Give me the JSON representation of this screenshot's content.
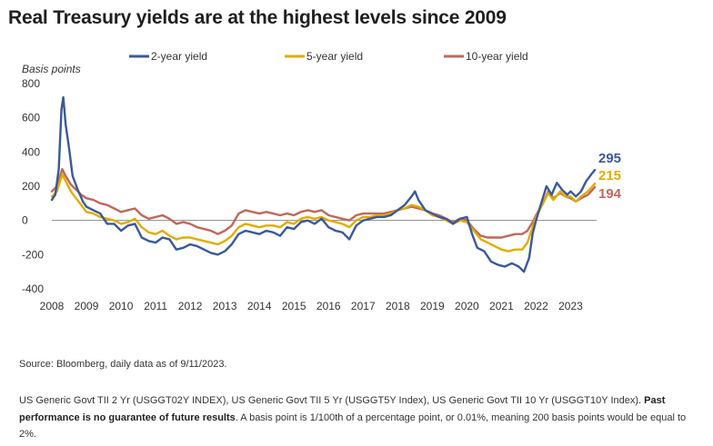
{
  "title": "Real Treasury yields are at the highest levels since 2009",
  "source_note": "Source: Bloomberg, daily data as of 9/11/2023.",
  "footnote": {
    "text1": "US Generic Govt TII 2 Yr (USGGT02Y INDEX), US Generic Govt TII 5 Yr (USGGT5Y Index), US Generic Govt TII 10 Yr (USGGT10Y Index). ",
    "bold": "Past performance is no guarantee of future results",
    "text2": ". A basis point is 1/100th of a percentage point, or 0.01%, meaning 200 basis points would be equal to 2%."
  },
  "chart_data": {
    "type": "line",
    "title": "Real Treasury yields are at the highest levels since 2009",
    "ylabel": "Basis points",
    "xlabel": "",
    "xlim": [
      2008,
      2023.75
    ],
    "ylim": [
      -400,
      800
    ],
    "yticks": [
      -400,
      -200,
      0,
      200,
      400,
      600,
      800
    ],
    "xticks": [
      2008,
      2009,
      2010,
      2011,
      2012,
      2013,
      2014,
      2015,
      2016,
      2017,
      2018,
      2019,
      2020,
      2021,
      2022,
      2023
    ],
    "legend_position": "top",
    "zero_line": true,
    "series": [
      {
        "name": "2-year yield",
        "color": "#3b5998",
        "end_label": "295",
        "points": [
          [
            2008.0,
            120
          ],
          [
            2008.1,
            150
          ],
          [
            2008.2,
            300
          ],
          [
            2008.28,
            650
          ],
          [
            2008.33,
            720
          ],
          [
            2008.4,
            560
          ],
          [
            2008.5,
            420
          ],
          [
            2008.6,
            260
          ],
          [
            2008.75,
            180
          ],
          [
            2008.9,
            110
          ],
          [
            2009.0,
            80
          ],
          [
            2009.2,
            60
          ],
          [
            2009.4,
            40
          ],
          [
            2009.6,
            -20
          ],
          [
            2009.8,
            -20
          ],
          [
            2010.0,
            -60
          ],
          [
            2010.2,
            -30
          ],
          [
            2010.4,
            -20
          ],
          [
            2010.6,
            -100
          ],
          [
            2010.8,
            -120
          ],
          [
            2011.0,
            -130
          ],
          [
            2011.2,
            -100
          ],
          [
            2011.4,
            -110
          ],
          [
            2011.6,
            -170
          ],
          [
            2011.8,
            -160
          ],
          [
            2012.0,
            -140
          ],
          [
            2012.2,
            -150
          ],
          [
            2012.4,
            -170
          ],
          [
            2012.6,
            -190
          ],
          [
            2012.8,
            -200
          ],
          [
            2013.0,
            -180
          ],
          [
            2013.2,
            -140
          ],
          [
            2013.4,
            -80
          ],
          [
            2013.6,
            -60
          ],
          [
            2013.8,
            -70
          ],
          [
            2014.0,
            -80
          ],
          [
            2014.2,
            -60
          ],
          [
            2014.4,
            -70
          ],
          [
            2014.6,
            -90
          ],
          [
            2014.8,
            -40
          ],
          [
            2015.0,
            -50
          ],
          [
            2015.2,
            -10
          ],
          [
            2015.4,
            0
          ],
          [
            2015.6,
            -20
          ],
          [
            2015.8,
            10
          ],
          [
            2016.0,
            -40
          ],
          [
            2016.2,
            -60
          ],
          [
            2016.4,
            -70
          ],
          [
            2016.6,
            -110
          ],
          [
            2016.8,
            -30
          ],
          [
            2017.0,
            0
          ],
          [
            2017.2,
            10
          ],
          [
            2017.4,
            20
          ],
          [
            2017.6,
            20
          ],
          [
            2017.8,
            30
          ],
          [
            2018.0,
            60
          ],
          [
            2018.2,
            90
          ],
          [
            2018.4,
            140
          ],
          [
            2018.5,
            170
          ],
          [
            2018.6,
            120
          ],
          [
            2018.8,
            60
          ],
          [
            2019.0,
            40
          ],
          [
            2019.2,
            20
          ],
          [
            2019.4,
            10
          ],
          [
            2019.6,
            -20
          ],
          [
            2019.8,
            10
          ],
          [
            2020.0,
            20
          ],
          [
            2020.15,
            -80
          ],
          [
            2020.3,
            -160
          ],
          [
            2020.5,
            -180
          ],
          [
            2020.7,
            -240
          ],
          [
            2020.9,
            -260
          ],
          [
            2021.1,
            -270
          ],
          [
            2021.3,
            -250
          ],
          [
            2021.5,
            -270
          ],
          [
            2021.65,
            -300
          ],
          [
            2021.8,
            -220
          ],
          [
            2021.9,
            -80
          ],
          [
            2022.0,
            0
          ],
          [
            2022.15,
            100
          ],
          [
            2022.3,
            200
          ],
          [
            2022.45,
            150
          ],
          [
            2022.6,
            220
          ],
          [
            2022.75,
            180
          ],
          [
            2022.9,
            150
          ],
          [
            2023.0,
            170
          ],
          [
            2023.15,
            140
          ],
          [
            2023.3,
            170
          ],
          [
            2023.45,
            230
          ],
          [
            2023.6,
            270
          ],
          [
            2023.7,
            295
          ]
        ]
      },
      {
        "name": "5-year yield",
        "color": "#e0ac00",
        "end_label": "215",
        "points": [
          [
            2008.0,
            140
          ],
          [
            2008.15,
            170
          ],
          [
            2008.3,
            270
          ],
          [
            2008.4,
            230
          ],
          [
            2008.55,
            170
          ],
          [
            2008.7,
            130
          ],
          [
            2008.85,
            90
          ],
          [
            2009.0,
            50
          ],
          [
            2009.2,
            40
          ],
          [
            2009.4,
            20
          ],
          [
            2009.6,
            10
          ],
          [
            2009.8,
            0
          ],
          [
            2010.0,
            -20
          ],
          [
            2010.2,
            -10
          ],
          [
            2010.4,
            10
          ],
          [
            2010.6,
            -40
          ],
          [
            2010.8,
            -70
          ],
          [
            2011.0,
            -80
          ],
          [
            2011.2,
            -60
          ],
          [
            2011.4,
            -90
          ],
          [
            2011.6,
            -110
          ],
          [
            2011.8,
            -100
          ],
          [
            2012.0,
            -100
          ],
          [
            2012.2,
            -110
          ],
          [
            2012.4,
            -120
          ],
          [
            2012.6,
            -130
          ],
          [
            2012.8,
            -140
          ],
          [
            2013.0,
            -120
          ],
          [
            2013.2,
            -90
          ],
          [
            2013.4,
            -40
          ],
          [
            2013.6,
            -20
          ],
          [
            2013.8,
            -30
          ],
          [
            2014.0,
            -40
          ],
          [
            2014.2,
            -30
          ],
          [
            2014.4,
            -30
          ],
          [
            2014.6,
            -40
          ],
          [
            2014.8,
            -10
          ],
          [
            2015.0,
            -20
          ],
          [
            2015.2,
            10
          ],
          [
            2015.4,
            20
          ],
          [
            2015.6,
            10
          ],
          [
            2015.8,
            20
          ],
          [
            2016.0,
            0
          ],
          [
            2016.2,
            -10
          ],
          [
            2016.4,
            -20
          ],
          [
            2016.6,
            -40
          ],
          [
            2016.8,
            0
          ],
          [
            2017.0,
            20
          ],
          [
            2017.2,
            20
          ],
          [
            2017.4,
            30
          ],
          [
            2017.6,
            30
          ],
          [
            2017.8,
            40
          ],
          [
            2018.0,
            60
          ],
          [
            2018.2,
            70
          ],
          [
            2018.4,
            90
          ],
          [
            2018.6,
            80
          ],
          [
            2018.8,
            60
          ],
          [
            2019.0,
            30
          ],
          [
            2019.2,
            20
          ],
          [
            2019.4,
            0
          ],
          [
            2019.6,
            -20
          ],
          [
            2019.8,
            0
          ],
          [
            2020.0,
            -10
          ],
          [
            2020.2,
            -60
          ],
          [
            2020.4,
            -110
          ],
          [
            2020.6,
            -130
          ],
          [
            2020.8,
            -150
          ],
          [
            2021.0,
            -170
          ],
          [
            2021.2,
            -180
          ],
          [
            2021.4,
            -170
          ],
          [
            2021.6,
            -170
          ],
          [
            2021.75,
            -130
          ],
          [
            2021.9,
            -40
          ],
          [
            2022.0,
            20
          ],
          [
            2022.2,
            100
          ],
          [
            2022.35,
            160
          ],
          [
            2022.5,
            120
          ],
          [
            2022.7,
            170
          ],
          [
            2022.85,
            140
          ],
          [
            2023.0,
            140
          ],
          [
            2023.15,
            110
          ],
          [
            2023.3,
            140
          ],
          [
            2023.5,
            170
          ],
          [
            2023.7,
            215
          ]
        ]
      },
      {
        "name": "10-year yield",
        "color": "#c0675c",
        "end_label": "194",
        "points": [
          [
            2008.0,
            170
          ],
          [
            2008.15,
            200
          ],
          [
            2008.3,
            300
          ],
          [
            2008.4,
            260
          ],
          [
            2008.55,
            210
          ],
          [
            2008.7,
            180
          ],
          [
            2008.85,
            150
          ],
          [
            2009.0,
            130
          ],
          [
            2009.2,
            120
          ],
          [
            2009.4,
            100
          ],
          [
            2009.6,
            90
          ],
          [
            2009.8,
            70
          ],
          [
            2010.0,
            50
          ],
          [
            2010.2,
            60
          ],
          [
            2010.4,
            70
          ],
          [
            2010.6,
            30
          ],
          [
            2010.8,
            10
          ],
          [
            2011.0,
            20
          ],
          [
            2011.2,
            30
          ],
          [
            2011.4,
            10
          ],
          [
            2011.6,
            -20
          ],
          [
            2011.8,
            -10
          ],
          [
            2012.0,
            -20
          ],
          [
            2012.2,
            -40
          ],
          [
            2012.4,
            -50
          ],
          [
            2012.6,
            -60
          ],
          [
            2012.8,
            -80
          ],
          [
            2013.0,
            -60
          ],
          [
            2013.2,
            -30
          ],
          [
            2013.4,
            40
          ],
          [
            2013.6,
            60
          ],
          [
            2013.8,
            50
          ],
          [
            2014.0,
            40
          ],
          [
            2014.2,
            50
          ],
          [
            2014.4,
            40
          ],
          [
            2014.6,
            30
          ],
          [
            2014.8,
            40
          ],
          [
            2015.0,
            30
          ],
          [
            2015.2,
            50
          ],
          [
            2015.4,
            60
          ],
          [
            2015.6,
            50
          ],
          [
            2015.8,
            60
          ],
          [
            2016.0,
            30
          ],
          [
            2016.2,
            20
          ],
          [
            2016.4,
            10
          ],
          [
            2016.6,
            0
          ],
          [
            2016.8,
            30
          ],
          [
            2017.0,
            40
          ],
          [
            2017.2,
            40
          ],
          [
            2017.4,
            40
          ],
          [
            2017.6,
            40
          ],
          [
            2017.8,
            50
          ],
          [
            2018.0,
            60
          ],
          [
            2018.2,
            70
          ],
          [
            2018.4,
            80
          ],
          [
            2018.6,
            70
          ],
          [
            2018.8,
            60
          ],
          [
            2019.0,
            40
          ],
          [
            2019.2,
            30
          ],
          [
            2019.4,
            10
          ],
          [
            2019.6,
            -10
          ],
          [
            2019.8,
            10
          ],
          [
            2020.0,
            0
          ],
          [
            2020.2,
            -50
          ],
          [
            2020.4,
            -90
          ],
          [
            2020.6,
            -100
          ],
          [
            2020.8,
            -100
          ],
          [
            2021.0,
            -100
          ],
          [
            2021.2,
            -90
          ],
          [
            2021.4,
            -80
          ],
          [
            2021.6,
            -80
          ],
          [
            2021.75,
            -60
          ],
          [
            2021.9,
            -10
          ],
          [
            2022.0,
            30
          ],
          [
            2022.2,
            100
          ],
          [
            2022.35,
            170
          ],
          [
            2022.5,
            130
          ],
          [
            2022.7,
            160
          ],
          [
            2022.85,
            140
          ],
          [
            2023.0,
            130
          ],
          [
            2023.15,
            110
          ],
          [
            2023.3,
            130
          ],
          [
            2023.5,
            150
          ],
          [
            2023.7,
            194
          ]
        ]
      }
    ]
  }
}
